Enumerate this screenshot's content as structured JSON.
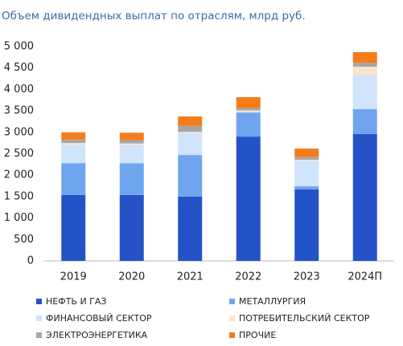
{
  "chart_data": {
    "type": "stacked_bar",
    "title": "Объем дивидендных выплат по отраслям, млрд руб.",
    "categories": [
      "2019",
      "2020",
      "2021",
      "2022",
      "2023",
      "2024П"
    ],
    "series": [
      {
        "name": "НЕФТЬ И ГАЗ",
        "color": "#2453c8",
        "values": [
          1540,
          1540,
          1500,
          2900,
          1670,
          2960
        ]
      },
      {
        "name": "МЕТАЛЛУРГИЯ",
        "color": "#6fa5ee",
        "values": [
          740,
          740,
          970,
          560,
          70,
          580
        ]
      },
      {
        "name": "ФИНАНСОВЫЙ СЕКТОР",
        "color": "#d0e4fb",
        "values": [
          430,
          420,
          510,
          30,
          600,
          800
        ]
      },
      {
        "name": "ПОТРЕБИТЕЛЬСКИЙ СЕКТОР",
        "color": "#fbe4cf",
        "values": [
          40,
          40,
          30,
          20,
          20,
          190
        ]
      },
      {
        "name": "ЭЛЕКТРОЭНЕРГЕТИКА",
        "color": "#a6a6a6",
        "values": [
          80,
          80,
          140,
          50,
          60,
          90
        ]
      },
      {
        "name": "ПРОЧИЕ",
        "color": "#f47c1a",
        "values": [
          170,
          170,
          220,
          260,
          200,
          250
        ]
      }
    ],
    "ylim": [
      0,
      5000
    ],
    "yticks": [
      0,
      500,
      {
        "value": 1000,
        "label": "1 000"
      },
      {
        "value": 1500,
        "label": "1 500"
      },
      {
        "value": 2000,
        "label": "2 000"
      },
      {
        "value": 2500,
        "label": "2 500"
      },
      {
        "value": 3000,
        "label": "3 000"
      },
      {
        "value": 3500,
        "label": "3 500"
      },
      {
        "value": 4000,
        "label": "4 000"
      },
      {
        "value": 4500,
        "label": "4 500"
      },
      {
        "value": 5000,
        "label": "5 000"
      }
    ],
    "grid": false
  }
}
